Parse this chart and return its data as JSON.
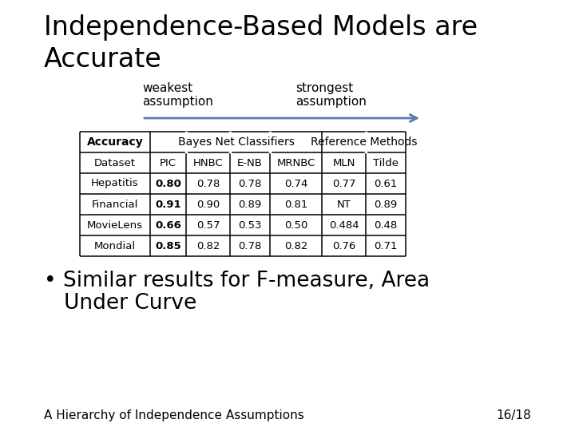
{
  "title_line1": "Independence-Based Models are",
  "title_line2": "Accurate",
  "title_fontsize": 24,
  "background_color": "#ffffff",
  "arrow_color": "#5B7BA8",
  "weakest_label": "weakest\nassumption",
  "strongest_label": "strongest\nassumption",
  "table_header1": "Accuracy",
  "table_header2": "Bayes Net Classifiers",
  "table_header3": "Reference Methods",
  "col_headers": [
    "Dataset",
    "PIC",
    "HNBC",
    "E-NB",
    "MRNBC",
    "MLN",
    "Tilde"
  ],
  "rows": [
    [
      "Hepatitis",
      "0.80",
      "0.78",
      "0.78",
      "0.74",
      "0.77",
      "0.61"
    ],
    [
      "Financial",
      "0.91",
      "0.90",
      "0.89",
      "0.81",
      "NT",
      "0.89"
    ],
    [
      "MovieLens",
      "0.66",
      "0.57",
      "0.53",
      "0.50",
      "0.484",
      "0.48"
    ],
    [
      "Mondial",
      "0.85",
      "0.82",
      "0.78",
      "0.82",
      "0.76",
      "0.71"
    ]
  ],
  "bold_col": 1,
  "bullet_text1": "• Similar results for F-measure, Area",
  "bullet_text2": "   Under Curve",
  "bullet_fontsize": 19,
  "footer_left": "A Hierarchy of Independence Assumptions",
  "footer_right": "16/18",
  "footer_fontsize": 11
}
